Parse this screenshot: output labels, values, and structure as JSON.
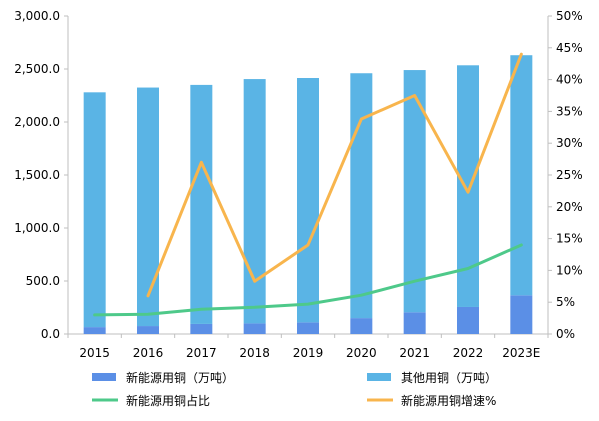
{
  "chart_data": {
    "type": "bar",
    "stacked": true,
    "categories": [
      "2015",
      "2016",
      "2017",
      "2018",
      "2019",
      "2020",
      "2021",
      "2022",
      "2023E"
    ],
    "left_axis": {
      "min": 0,
      "max": 3000,
      "step": 500,
      "tick_labels": [
        "0.0",
        "500.0",
        "1,000.0",
        "1,500.0",
        "2,000.0",
        "2,500.0",
        "3,000.0"
      ]
    },
    "right_axis": {
      "min": 0,
      "max": 50,
      "step": 5,
      "tick_labels": [
        "0%",
        "5%",
        "10%",
        "15%",
        "20%",
        "25%",
        "30%",
        "35%",
        "40%",
        "45%",
        "50%"
      ]
    },
    "grid": false,
    "legend_position": "bottom",
    "series": [
      {
        "name": "新能源用铜（万吨）",
        "type": "bar",
        "axis": "left",
        "color": "#5b8fe6",
        "values": [
          65,
          75,
          95,
          100,
          110,
          150,
          205,
          255,
          365
        ]
      },
      {
        "name": "其他用铜（万吨）",
        "type": "bar",
        "axis": "left",
        "color": "#5ab4e5",
        "values": [
          2215,
          2250,
          2255,
          2305,
          2305,
          2310,
          2285,
          2280,
          2265
        ]
      },
      {
        "name": "新能源用铜占比",
        "type": "line",
        "axis": "right",
        "color": "#4ec98a",
        "values": [
          3.0,
          3.1,
          3.9,
          4.2,
          4.7,
          6.1,
          8.3,
          10.3,
          14.0
        ]
      },
      {
        "name": "新能源用铜增速%",
        "type": "line",
        "axis": "right",
        "color": "#f8b54d",
        "values": [
          null,
          6.0,
          27.0,
          8.3,
          14.0,
          33.8,
          37.5,
          22.3,
          44.0
        ]
      }
    ]
  }
}
